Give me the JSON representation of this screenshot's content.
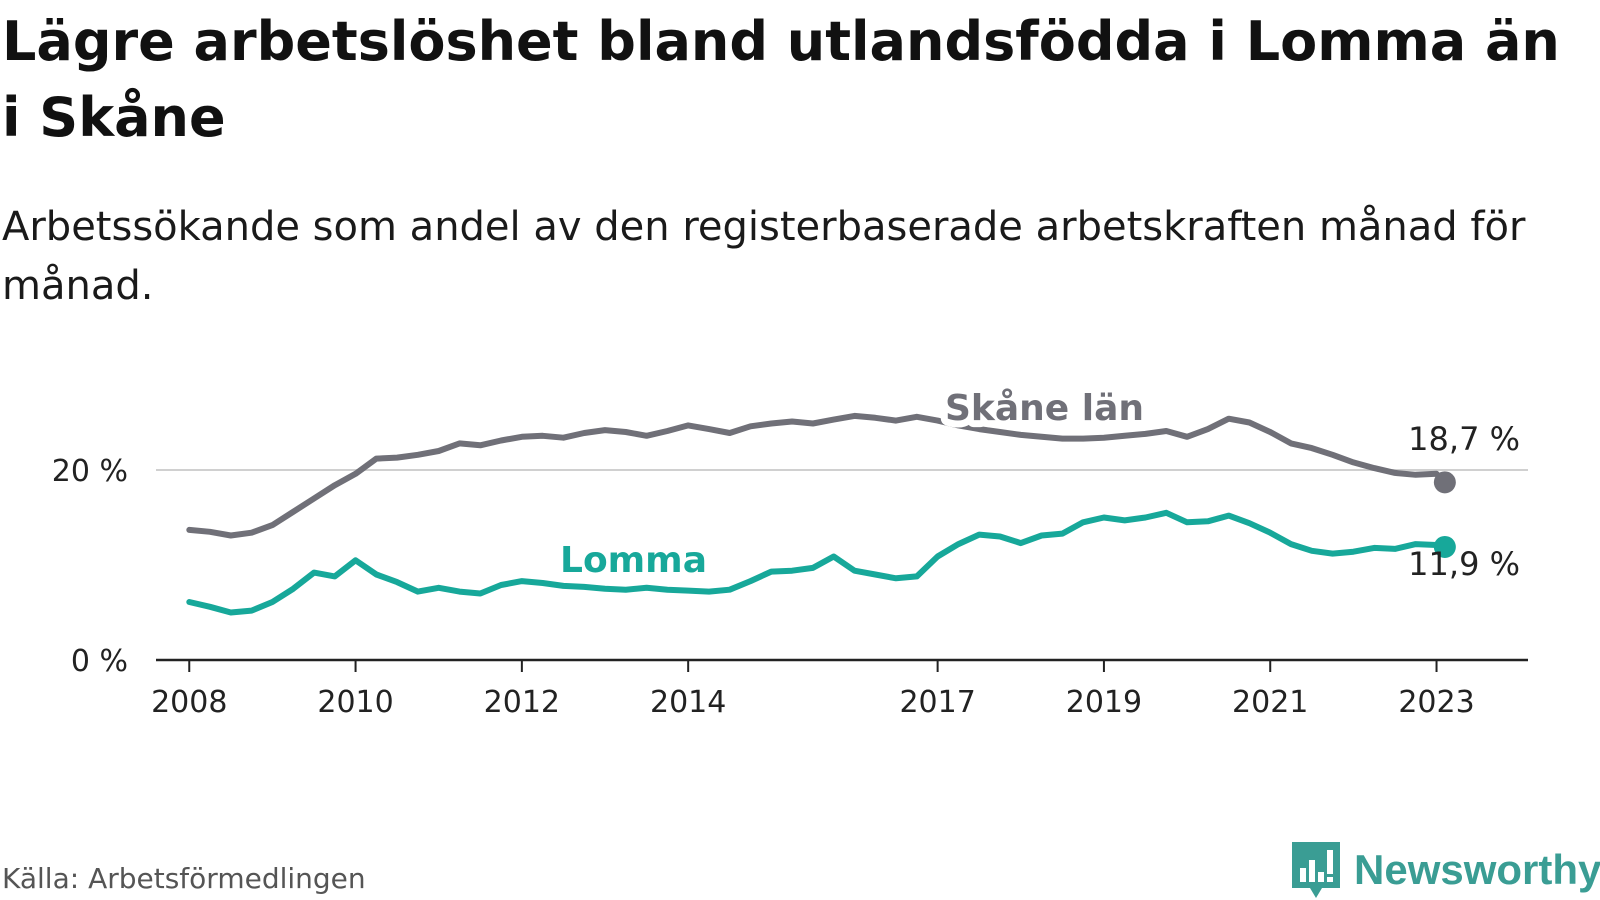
{
  "title": "Lägre arbetslöshet bland utlandsfödda i Lomma än i Skåne",
  "subtitle": "Arbetssökande som andel av den registerbaserade arbetskraften månad för månad.",
  "source": "Källa: Arbetsförmedlingen",
  "logo": {
    "name": "Newsworthy",
    "icon": "bar-chart-logo-icon",
    "color": "#3a9d94"
  },
  "colors": {
    "skane": "#707078",
    "lomma": "#17a89a",
    "axis": "#222222",
    "grid": "#d0d0d0"
  },
  "chart_data": {
    "type": "line",
    "title": "Lägre arbetslöshet bland utlandsfödda i Lomma än i Skåne",
    "ylabel": "",
    "xlabel": "",
    "ylim": [
      0,
      28
    ],
    "xlim": [
      2007.6,
      2024.1
    ],
    "y_ticks": [
      {
        "value": 0,
        "label": "0 %"
      },
      {
        "value": 20,
        "label": "20 %"
      }
    ],
    "x_ticks": [
      {
        "value": 2008,
        "label": "2008"
      },
      {
        "value": 2010,
        "label": "2010"
      },
      {
        "value": 2012,
        "label": "2012"
      },
      {
        "value": 2014,
        "label": "2014"
      },
      {
        "value": 2017,
        "label": "2017"
      },
      {
        "value": 2019,
        "label": "2019"
      },
      {
        "value": 2021,
        "label": "2021"
      },
      {
        "value": 2023,
        "label": "2023"
      }
    ],
    "series": [
      {
        "name": "Skåne län",
        "color": "#707078",
        "end_label": "18,7 %",
        "points": [
          [
            2008.0,
            13.7
          ],
          [
            2008.25,
            13.5
          ],
          [
            2008.5,
            13.1
          ],
          [
            2008.75,
            13.4
          ],
          [
            2009.0,
            14.2
          ],
          [
            2009.25,
            15.6
          ],
          [
            2009.5,
            17.0
          ],
          [
            2009.75,
            18.4
          ],
          [
            2010.0,
            19.6
          ],
          [
            2010.25,
            21.2
          ],
          [
            2010.5,
            21.3
          ],
          [
            2010.75,
            21.6
          ],
          [
            2011.0,
            22.0
          ],
          [
            2011.25,
            22.8
          ],
          [
            2011.5,
            22.6
          ],
          [
            2011.75,
            23.1
          ],
          [
            2012.0,
            23.5
          ],
          [
            2012.25,
            23.6
          ],
          [
            2012.5,
            23.4
          ],
          [
            2012.75,
            23.9
          ],
          [
            2013.0,
            24.2
          ],
          [
            2013.25,
            24.0
          ],
          [
            2013.5,
            23.6
          ],
          [
            2013.75,
            24.1
          ],
          [
            2014.0,
            24.7
          ],
          [
            2014.25,
            24.3
          ],
          [
            2014.5,
            23.9
          ],
          [
            2014.75,
            24.6
          ],
          [
            2015.0,
            24.9
          ],
          [
            2015.25,
            25.1
          ],
          [
            2015.5,
            24.9
          ],
          [
            2015.75,
            25.3
          ],
          [
            2016.0,
            25.7
          ],
          [
            2016.25,
            25.5
          ],
          [
            2016.5,
            25.2
          ],
          [
            2016.75,
            25.6
          ],
          [
            2017.0,
            25.2
          ],
          [
            2017.25,
            24.7
          ],
          [
            2017.5,
            24.3
          ],
          [
            2017.75,
            24.0
          ],
          [
            2018.0,
            23.7
          ],
          [
            2018.25,
            23.5
          ],
          [
            2018.5,
            23.3
          ],
          [
            2018.75,
            23.3
          ],
          [
            2019.0,
            23.4
          ],
          [
            2019.25,
            23.6
          ],
          [
            2019.5,
            23.8
          ],
          [
            2019.75,
            24.1
          ],
          [
            2020.0,
            23.5
          ],
          [
            2020.25,
            24.3
          ],
          [
            2020.5,
            25.4
          ],
          [
            2020.75,
            25.0
          ],
          [
            2021.0,
            24.0
          ],
          [
            2021.25,
            22.8
          ],
          [
            2021.5,
            22.3
          ],
          [
            2021.75,
            21.6
          ],
          [
            2022.0,
            20.8
          ],
          [
            2022.25,
            20.2
          ],
          [
            2022.5,
            19.7
          ],
          [
            2022.75,
            19.5
          ],
          [
            2023.0,
            19.6
          ],
          [
            2023.1,
            18.7
          ]
        ]
      },
      {
        "name": "Lomma",
        "color": "#17a89a",
        "end_label": "11,9 %",
        "points": [
          [
            2008.0,
            6.1
          ],
          [
            2008.25,
            5.6
          ],
          [
            2008.5,
            5.0
          ],
          [
            2008.75,
            5.2
          ],
          [
            2009.0,
            6.1
          ],
          [
            2009.25,
            7.5
          ],
          [
            2009.5,
            9.2
          ],
          [
            2009.75,
            8.8
          ],
          [
            2010.0,
            10.5
          ],
          [
            2010.25,
            9.0
          ],
          [
            2010.5,
            8.2
          ],
          [
            2010.75,
            7.2
          ],
          [
            2011.0,
            7.6
          ],
          [
            2011.25,
            7.2
          ],
          [
            2011.5,
            7.0
          ],
          [
            2011.75,
            7.9
          ],
          [
            2012.0,
            8.3
          ],
          [
            2012.25,
            8.1
          ],
          [
            2012.5,
            7.8
          ],
          [
            2012.75,
            7.7
          ],
          [
            2013.0,
            7.5
          ],
          [
            2013.25,
            7.4
          ],
          [
            2013.5,
            7.6
          ],
          [
            2013.75,
            7.4
          ],
          [
            2014.0,
            7.3
          ],
          [
            2014.25,
            7.2
          ],
          [
            2014.5,
            7.4
          ],
          [
            2014.75,
            8.3
          ],
          [
            2015.0,
            9.3
          ],
          [
            2015.25,
            9.4
          ],
          [
            2015.5,
            9.7
          ],
          [
            2015.75,
            10.9
          ],
          [
            2016.0,
            9.4
          ],
          [
            2016.25,
            9.0
          ],
          [
            2016.5,
            8.6
          ],
          [
            2016.75,
            8.8
          ],
          [
            2017.0,
            10.9
          ],
          [
            2017.25,
            12.2
          ],
          [
            2017.5,
            13.2
          ],
          [
            2017.75,
            13.0
          ],
          [
            2018.0,
            12.3
          ],
          [
            2018.25,
            13.1
          ],
          [
            2018.5,
            13.3
          ],
          [
            2018.75,
            14.5
          ],
          [
            2019.0,
            15.0
          ],
          [
            2019.25,
            14.7
          ],
          [
            2019.5,
            15.0
          ],
          [
            2019.75,
            15.5
          ],
          [
            2020.0,
            14.5
          ],
          [
            2020.25,
            14.6
          ],
          [
            2020.5,
            15.2
          ],
          [
            2020.75,
            14.4
          ],
          [
            2021.0,
            13.4
          ],
          [
            2021.25,
            12.2
          ],
          [
            2021.5,
            11.5
          ],
          [
            2021.75,
            11.2
          ],
          [
            2022.0,
            11.4
          ],
          [
            2022.25,
            11.8
          ],
          [
            2022.5,
            11.7
          ],
          [
            2022.75,
            12.2
          ],
          [
            2023.0,
            12.1
          ],
          [
            2023.1,
            11.9
          ]
        ]
      }
    ]
  }
}
